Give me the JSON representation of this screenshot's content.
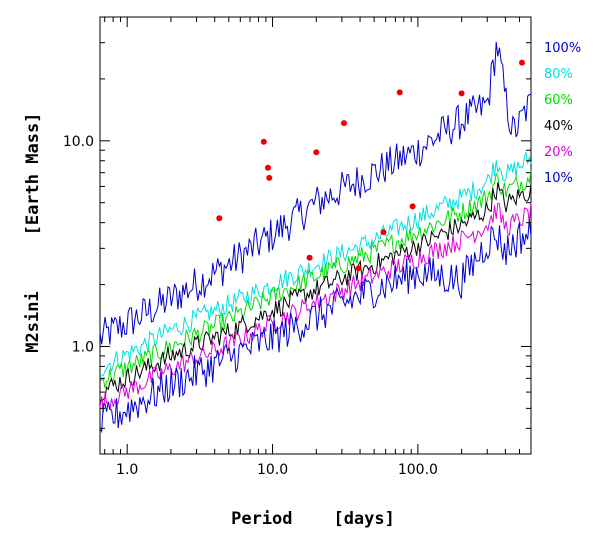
{
  "chart_data": {
    "type": "line",
    "title": "",
    "xlabel": "Period    [days]",
    "ylabel": "M2sini",
    "ylabel_unit": "[Earth Mass]",
    "x_scale": "log",
    "y_scale": "log",
    "xlim": [
      0.65,
      600
    ],
    "ylim": [
      0.3,
      40
    ],
    "x_ticks": [
      {
        "value": 1.0,
        "label": "1.0"
      },
      {
        "value": 10.0,
        "label": "10.0"
      },
      {
        "value": 100.0,
        "label": "100.0"
      }
    ],
    "y_ticks": [
      {
        "value": 1.0,
        "label": "1.0"
      },
      {
        "value": 10.0,
        "label": "10.0"
      }
    ],
    "grid": false,
    "legend_position": "right",
    "series": [
      {
        "name": "100%",
        "color": "#0000cc",
        "x": [
          0.65,
          2,
          5,
          10,
          20,
          50,
          100,
          150,
          200,
          300,
          350,
          400,
          450,
          500,
          550,
          600
        ],
        "y": [
          1.1,
          1.7,
          2.5,
          3.5,
          5.0,
          7.0,
          9.0,
          11.0,
          12.5,
          15.0,
          30.0,
          16.0,
          11.0,
          12.0,
          14.0,
          15.0
        ]
      },
      {
        "name": "80%",
        "color": "#00e0e0",
        "x": [
          0.65,
          2,
          5,
          10,
          20,
          50,
          100,
          200,
          300,
          350,
          400,
          500,
          600
        ],
        "y": [
          0.78,
          1.2,
          1.6,
          2.0,
          2.5,
          3.3,
          4.2,
          5.3,
          6.3,
          8.0,
          6.8,
          7.5,
          8.3
        ]
      },
      {
        "name": "60%",
        "color": "#00dd00",
        "x": [
          0.65,
          2,
          5,
          10,
          20,
          50,
          100,
          200,
          300,
          350,
          400,
          500,
          600
        ],
        "y": [
          0.68,
          1.0,
          1.35,
          1.75,
          2.2,
          2.9,
          3.6,
          4.5,
          5.3,
          6.5,
          5.7,
          6.2,
          6.8
        ]
      },
      {
        "name": "40%",
        "color": "#000000",
        "x": [
          0.65,
          2,
          5,
          10,
          20,
          50,
          100,
          200,
          300,
          350,
          400,
          500,
          600
        ],
        "y": [
          0.6,
          0.9,
          1.18,
          1.5,
          1.9,
          2.5,
          3.1,
          3.9,
          4.6,
          5.9,
          4.9,
          5.4,
          5.7
        ]
      },
      {
        "name": "20%",
        "color": "#dd00dd",
        "x": [
          0.65,
          2,
          5,
          10,
          20,
          50,
          100,
          200,
          300,
          350,
          400,
          500,
          600
        ],
        "y": [
          0.52,
          0.78,
          1.02,
          1.3,
          1.65,
          2.2,
          2.7,
          3.3,
          3.9,
          4.7,
          3.8,
          4.1,
          4.5
        ]
      },
      {
        "name": "10%",
        "color": "#0000cc",
        "x": [
          0.65,
          2,
          5,
          10,
          20,
          50,
          100,
          200,
          300,
          350,
          400,
          500,
          600
        ],
        "y": [
          0.42,
          0.65,
          0.88,
          1.1,
          1.4,
          1.9,
          2.3,
          2.1,
          3.2,
          3.5,
          2.9,
          3.4,
          3.5
        ]
      }
    ],
    "points": {
      "name": "",
      "color": "#ee0000",
      "x": [
        4.3,
        8.7,
        9.3,
        9.5,
        18.0,
        20.0,
        31.0,
        39.0,
        58.0,
        75.0,
        92.0,
        200.0,
        520.0
      ],
      "y": [
        4.2,
        9.9,
        7.4,
        6.6,
        2.7,
        8.8,
        12.2,
        2.4,
        3.6,
        17.2,
        4.8,
        17.0,
        24.0
      ]
    }
  }
}
